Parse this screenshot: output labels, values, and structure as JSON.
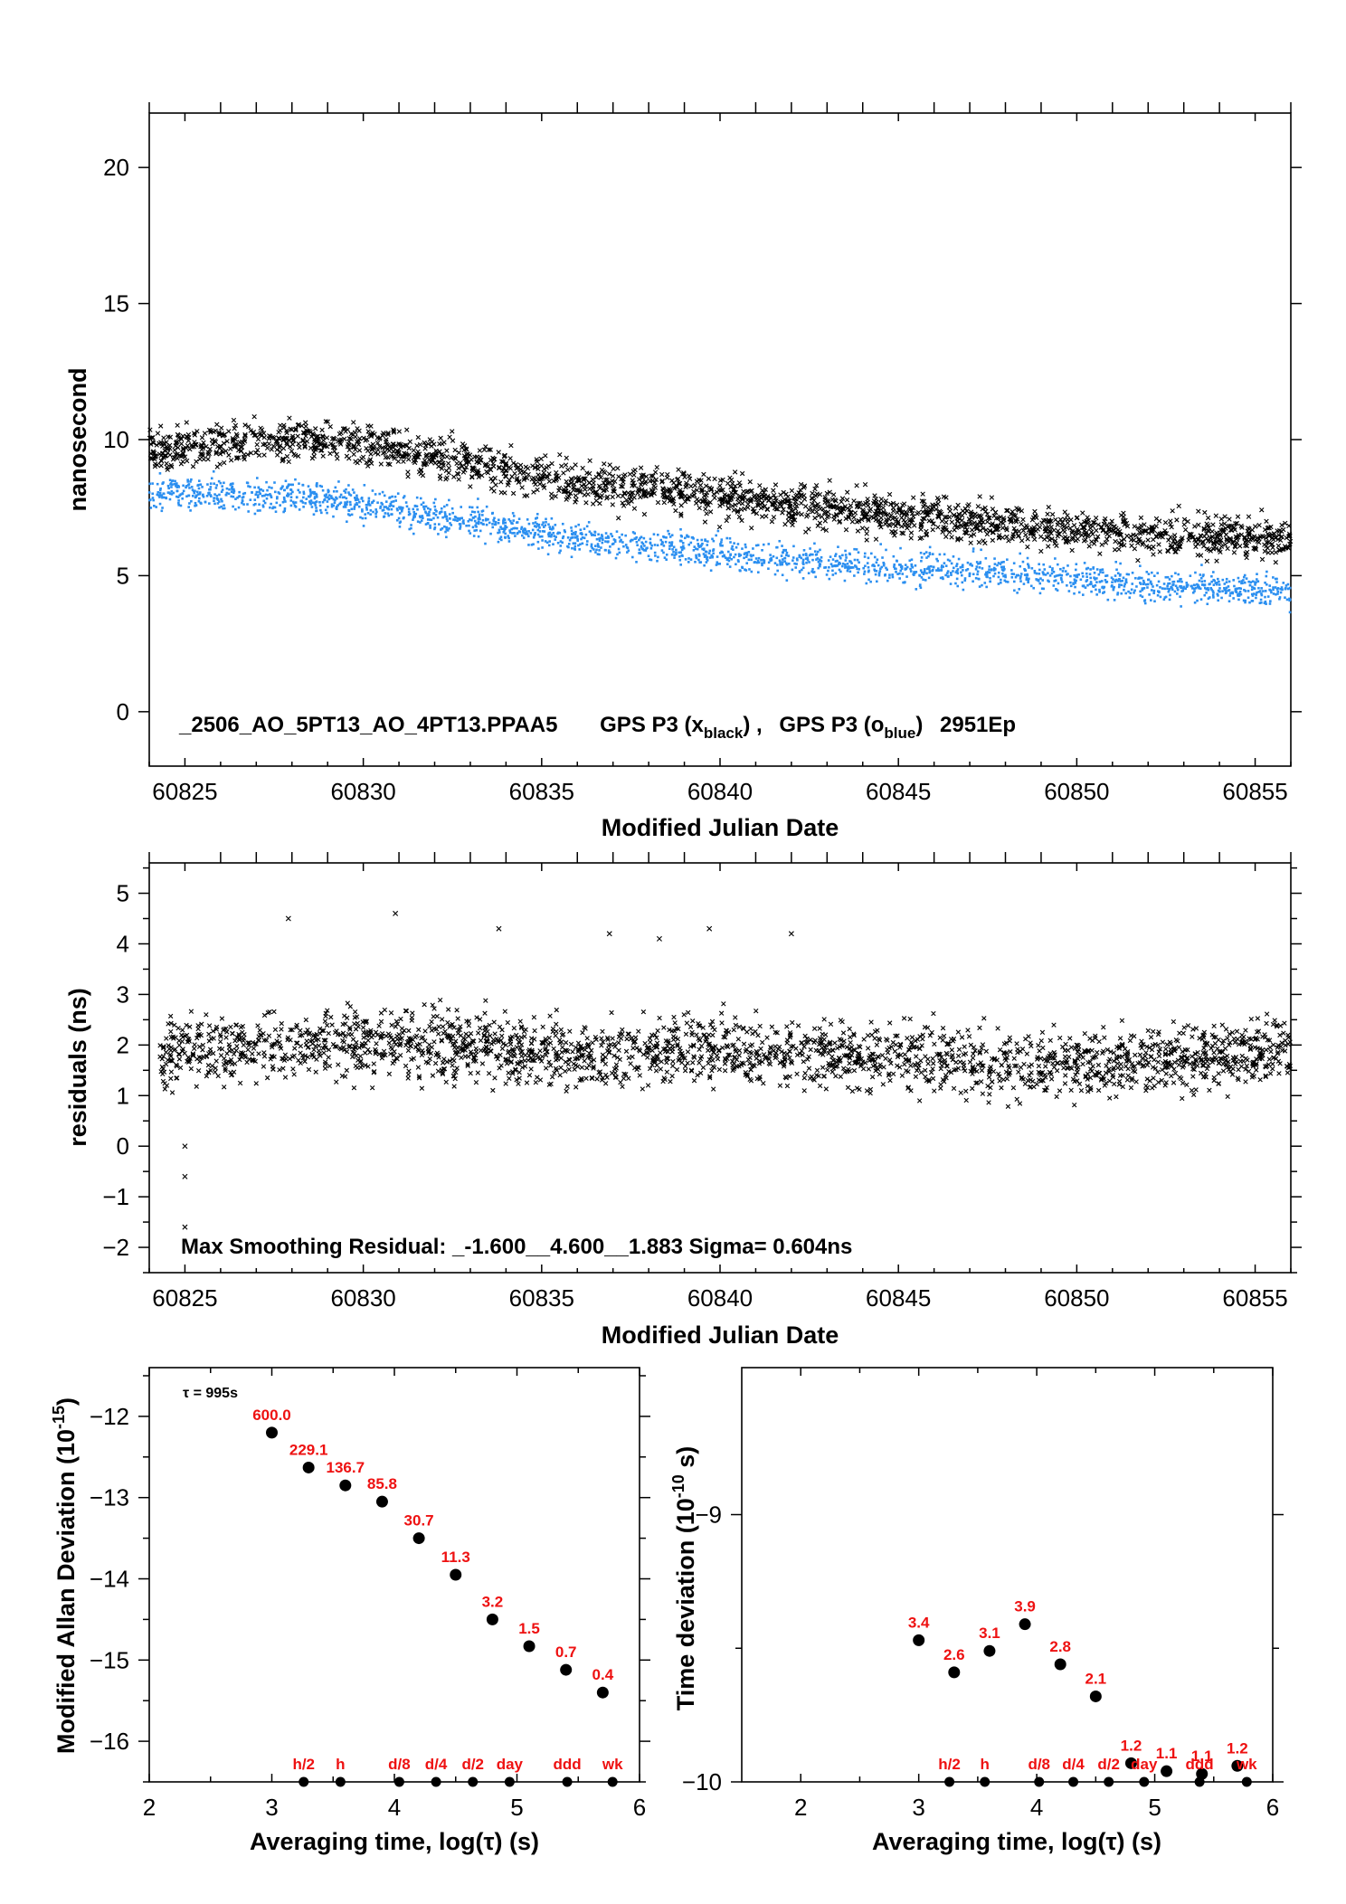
{
  "colors": {
    "black_series": "#000000",
    "blue_series": "#2b8ff0",
    "labels_red": "#ee1111"
  },
  "chart_data": [
    {
      "id": "panel1",
      "type": "scatter",
      "xlabel": "Modified Julian Date",
      "ylabel": "nanosecond",
      "xlim": [
        60824,
        60856
      ],
      "ylim": [
        -2,
        22
      ],
      "xticks": [
        60825,
        60830,
        60835,
        60840,
        60845,
        60850,
        60855
      ],
      "yticks": [
        0,
        5,
        10,
        15,
        20
      ],
      "annotation": {
        "file": "_2506_AO_5PT13_AO_4PT13.PPAA5",
        "s1_pre": "GPS P3 (x",
        "s1_sub": "black",
        "s1_post": ") ,",
        "s2_pre": "GPS P3 (o",
        "s2_sub": "blue",
        "s2_post": ")",
        "code": "2951Ep"
      },
      "series": [
        {
          "name": "GPS P3 (x_black)",
          "marker": "x",
          "color": "#000000",
          "x": [
            60824,
            60826,
            60828,
            60830,
            60832,
            60834,
            60836,
            60838,
            60840,
            60842,
            60844,
            60846,
            60848,
            60850,
            60852,
            60854,
            60856
          ],
          "y": [
            9.6,
            9.8,
            10.0,
            9.9,
            9.4,
            8.8,
            8.4,
            8.2,
            7.9,
            7.6,
            7.4,
            7.1,
            6.9,
            6.7,
            6.5,
            6.4,
            6.3
          ],
          "scatter": 0.75
        },
        {
          "name": "GPS P3 (o_blue)",
          "marker": "dot",
          "color": "#2b8ff0",
          "x": [
            60824,
            60826,
            60828,
            60830,
            60832,
            60834,
            60836,
            60838,
            60840,
            60842,
            60844,
            60846,
            60848,
            60850,
            60852,
            60854,
            60856
          ],
          "y": [
            8.1,
            8.0,
            7.9,
            7.6,
            7.2,
            6.8,
            6.4,
            6.1,
            5.8,
            5.6,
            5.4,
            5.2,
            5.1,
            4.9,
            4.6,
            4.6,
            4.4
          ],
          "scatter": 0.6
        }
      ]
    },
    {
      "id": "panel2",
      "type": "scatter",
      "xlabel": "Modified Julian Date",
      "ylabel": "residuals (ns)",
      "xlim": [
        60824,
        60856
      ],
      "ylim": [
        -2.5,
        5.6
      ],
      "xticks": [
        60825,
        60830,
        60835,
        60840,
        60845,
        60850,
        60855
      ],
      "yticks": [
        -2,
        -1,
        0,
        1,
        2,
        3,
        4,
        5
      ],
      "annotation": "Max Smoothing Residual: _-1.600__4.600__1.883  Sigma= 0.604ns",
      "series": [
        {
          "name": "residuals",
          "marker": "x",
          "color": "#000000",
          "x": [
            60824,
            60828,
            60832,
            60836,
            60840,
            60844,
            60848,
            60852,
            60856
          ],
          "y": [
            1.8,
            2.0,
            2.0,
            1.8,
            1.9,
            1.8,
            1.6,
            1.7,
            1.9
          ],
          "scatter": 0.6,
          "outliers": [
            [
              60825,
              -1.6
            ],
            [
              60825,
              -0.6
            ],
            [
              60825,
              0.0
            ],
            [
              60827.9,
              4.5
            ],
            [
              60830.9,
              4.6
            ],
            [
              60833.8,
              4.3
            ],
            [
              60839.7,
              4.3
            ],
            [
              60836.9,
              4.2
            ],
            [
              60838.3,
              4.1
            ],
            [
              60842,
              4.2
            ]
          ]
        }
      ]
    },
    {
      "id": "mdev",
      "type": "scatter",
      "xlabel": "Averaging time, log(τ) (s)",
      "ylabel_main": "Modified Allan Deviation (10",
      "ylabel_sup": "-15",
      "ylabel_end": ")",
      "xlim": [
        2,
        6
      ],
      "ylim": [
        -16.5,
        -11.4
      ],
      "xticks": [
        2,
        3,
        4,
        5,
        6
      ],
      "yticks": [
        -16,
        -15,
        -14,
        -13,
        -12
      ],
      "tau_note": "τ = 995s",
      "points": [
        {
          "x": 3.0,
          "y": -12.2,
          "label": "600.0"
        },
        {
          "x": 3.3,
          "y": -12.63,
          "label": "229.1"
        },
        {
          "x": 3.6,
          "y": -12.85,
          "label": "136.7"
        },
        {
          "x": 3.9,
          "y": -13.05,
          "label": "85.8"
        },
        {
          "x": 4.2,
          "y": -13.5,
          "label": "30.7"
        },
        {
          "x": 4.5,
          "y": -13.95,
          "label": "11.3"
        },
        {
          "x": 4.8,
          "y": -14.5,
          "label": "3.2"
        },
        {
          "x": 5.1,
          "y": -14.83,
          "label": "1.5"
        },
        {
          "x": 5.4,
          "y": -15.12,
          "label": "0.7"
        },
        {
          "x": 5.7,
          "y": -15.4,
          "label": "0.4"
        }
      ],
      "markers": [
        {
          "x": 3.26,
          "label": "h/2"
        },
        {
          "x": 3.56,
          "label": "h"
        },
        {
          "x": 4.04,
          "label": "d/8"
        },
        {
          "x": 4.34,
          "label": "d/4"
        },
        {
          "x": 4.64,
          "label": "d/2"
        },
        {
          "x": 4.94,
          "label": "day"
        },
        {
          "x": 5.41,
          "label": "ddd"
        },
        {
          "x": 5.78,
          "label": "wk"
        }
      ]
    },
    {
      "id": "tdev",
      "type": "scatter",
      "xlabel": "Averaging time, log(τ) (s)",
      "ylabel_main": "Time deviation (10",
      "ylabel_sup": "-10",
      "ylabel_end": " s)",
      "xlim": [
        1.5,
        6
      ],
      "ylim": [
        -10,
        -8.45
      ],
      "xticks": [
        2,
        3,
        4,
        5,
        6
      ],
      "yticks": [
        -10,
        -9
      ],
      "points": [
        {
          "x": 3.0,
          "y": -9.47,
          "label": "3.4"
        },
        {
          "x": 3.3,
          "y": -9.59,
          "label": "2.6"
        },
        {
          "x": 3.6,
          "y": -9.51,
          "label": "3.1"
        },
        {
          "x": 3.9,
          "y": -9.41,
          "label": "3.9"
        },
        {
          "x": 4.2,
          "y": -9.56,
          "label": "2.8"
        },
        {
          "x": 4.5,
          "y": -9.68,
          "label": "2.1"
        },
        {
          "x": 4.8,
          "y": -9.93,
          "label": "1.2"
        },
        {
          "x": 5.1,
          "y": -9.96,
          "label": "1.1"
        },
        {
          "x": 5.4,
          "y": -9.97,
          "label": "1.1"
        },
        {
          "x": 5.7,
          "y": -9.94,
          "label": "1.2"
        }
      ],
      "markers": [
        {
          "x": 3.26,
          "label": "h/2"
        },
        {
          "x": 3.56,
          "label": "h"
        },
        {
          "x": 4.02,
          "label": "d/8"
        },
        {
          "x": 4.31,
          "label": "d/4"
        },
        {
          "x": 4.61,
          "label": "d/2"
        },
        {
          "x": 4.91,
          "label": "day"
        },
        {
          "x": 5.38,
          "label": "ddd"
        },
        {
          "x": 5.78,
          "label": "wk"
        }
      ]
    }
  ]
}
